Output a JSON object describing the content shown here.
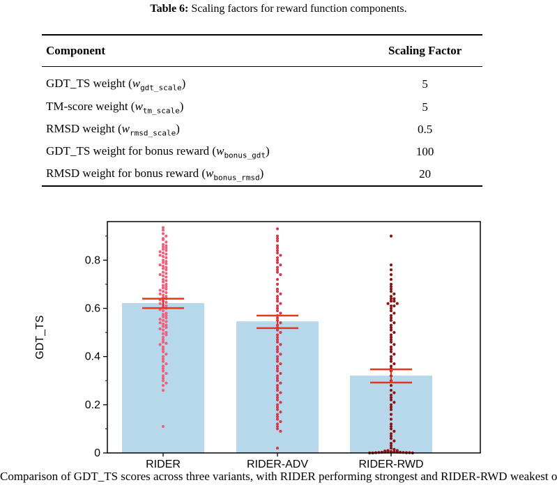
{
  "caption": {
    "label": "Table 6:",
    "text": "Scaling factors for reward function components."
  },
  "table": {
    "headers": [
      "Component",
      "Scaling Factor"
    ],
    "rows": [
      {
        "name": "GDT_TS weight (",
        "w": "w",
        "sub": "gdt_scale",
        "close": ")",
        "value": "5"
      },
      {
        "name": "TM-score weight (",
        "w": "w",
        "sub": "tm_scale",
        "close": ")",
        "value": "5"
      },
      {
        "name": "RMSD weight (",
        "w": "w",
        "sub": "rmsd_scale",
        "close": ")",
        "value": "0.5"
      },
      {
        "name": "GDT_TS weight for bonus reward (",
        "w": "w",
        "sub": "bonus_gdt",
        "close": ")",
        "value": "100"
      },
      {
        "name": "RMSD weight for bonus reward (",
        "w": "w",
        "sub": "bonus_rmsd",
        "close": ")",
        "value": "20"
      }
    ]
  },
  "chart_data": {
    "type": "bar",
    "categories": [
      "RIDER",
      "RIDER-ADV",
      "RIDER-RWD"
    ],
    "ylabel": "GDT_TS",
    "xlabel": "",
    "ylim": [
      0,
      0.96
    ],
    "yticks": [
      0,
      0.2,
      0.4,
      0.6,
      0.8
    ],
    "ytick_labels": [
      "0",
      "0.2",
      "0.4",
      "0.6",
      "0.8"
    ],
    "means": [
      0.622,
      0.546,
      0.321
    ],
    "error_bars": [
      [
        0.601,
        0.64
      ],
      [
        0.518,
        0.57
      ],
      [
        0.292,
        0.347
      ]
    ],
    "colors": {
      "bar": "#b6d8ea",
      "error": "#e8341c",
      "points": [
        "#f0607a",
        "#d23a50",
        "#8e1414"
      ]
    },
    "points": [
      [
        0.935,
        0.925,
        0.91,
        0.9,
        0.89,
        0.885,
        0.875,
        0.865,
        0.86,
        0.855,
        0.85,
        0.845,
        0.84,
        0.835,
        0.83,
        0.825,
        0.82,
        0.815,
        0.81,
        0.8,
        0.795,
        0.79,
        0.785,
        0.78,
        0.775,
        0.77,
        0.765,
        0.76,
        0.75,
        0.745,
        0.74,
        0.735,
        0.73,
        0.72,
        0.715,
        0.71,
        0.7,
        0.695,
        0.69,
        0.685,
        0.68,
        0.675,
        0.67,
        0.665,
        0.66,
        0.655,
        0.65,
        0.645,
        0.64,
        0.635,
        0.63,
        0.625,
        0.62,
        0.615,
        0.61,
        0.605,
        0.6,
        0.595,
        0.59,
        0.58,
        0.575,
        0.57,
        0.565,
        0.56,
        0.555,
        0.55,
        0.545,
        0.54,
        0.535,
        0.53,
        0.525,
        0.52,
        0.515,
        0.51,
        0.5,
        0.495,
        0.49,
        0.48,
        0.47,
        0.46,
        0.455,
        0.45,
        0.44,
        0.43,
        0.42,
        0.41,
        0.4,
        0.39,
        0.38,
        0.37,
        0.36,
        0.35,
        0.34,
        0.33,
        0.32,
        0.31,
        0.3,
        0.29,
        0.28,
        0.26,
        0.11
      ],
      [
        0.93,
        0.9,
        0.89,
        0.88,
        0.86,
        0.85,
        0.84,
        0.83,
        0.82,
        0.81,
        0.8,
        0.79,
        0.78,
        0.77,
        0.76,
        0.75,
        0.74,
        0.72,
        0.7,
        0.68,
        0.67,
        0.66,
        0.65,
        0.64,
        0.63,
        0.62,
        0.61,
        0.6,
        0.59,
        0.58,
        0.57,
        0.56,
        0.55,
        0.54,
        0.53,
        0.52,
        0.51,
        0.5,
        0.49,
        0.48,
        0.47,
        0.46,
        0.45,
        0.44,
        0.43,
        0.42,
        0.41,
        0.4,
        0.39,
        0.38,
        0.37,
        0.36,
        0.35,
        0.34,
        0.33,
        0.32,
        0.31,
        0.3,
        0.29,
        0.28,
        0.27,
        0.26,
        0.25,
        0.24,
        0.23,
        0.22,
        0.21,
        0.2,
        0.19,
        0.18,
        0.17,
        0.16,
        0.15,
        0.14,
        0.13,
        0.12,
        0.11,
        0.1,
        0.09,
        0.02
      ],
      [
        0.9,
        0.78,
        0.76,
        0.74,
        0.72,
        0.7,
        0.69,
        0.68,
        0.67,
        0.66,
        0.65,
        0.64,
        0.64,
        0.63,
        0.63,
        0.62,
        0.62,
        0.61,
        0.61,
        0.6,
        0.59,
        0.58,
        0.57,
        0.56,
        0.55,
        0.54,
        0.53,
        0.52,
        0.51,
        0.5,
        0.49,
        0.48,
        0.47,
        0.46,
        0.45,
        0.44,
        0.43,
        0.42,
        0.41,
        0.4,
        0.39,
        0.38,
        0.37,
        0.36,
        0.35,
        0.34,
        0.32,
        0.3,
        0.28,
        0.26,
        0.25,
        0.24,
        0.23,
        0.22,
        0.21,
        0.2,
        0.19,
        0.18,
        0.16,
        0.14,
        0.12,
        0.11,
        0.1,
        0.09,
        0.08,
        0.07,
        0.06,
        0.05,
        0.04,
        0.03,
        0.02,
        0.015,
        0.01,
        0.01,
        0.008,
        0.006,
        0.005,
        0.005,
        0.004,
        0.004,
        0.003,
        0.003,
        0.002,
        0.002,
        0.001,
        0.001,
        0.001,
        0.0,
        0.0,
        0.0
      ]
    ]
  },
  "footer": {
    "text": "Comparison of GDT_TS scores across three variants, with RIDER performing strongest and RIDER-RWD weakest on average."
  }
}
